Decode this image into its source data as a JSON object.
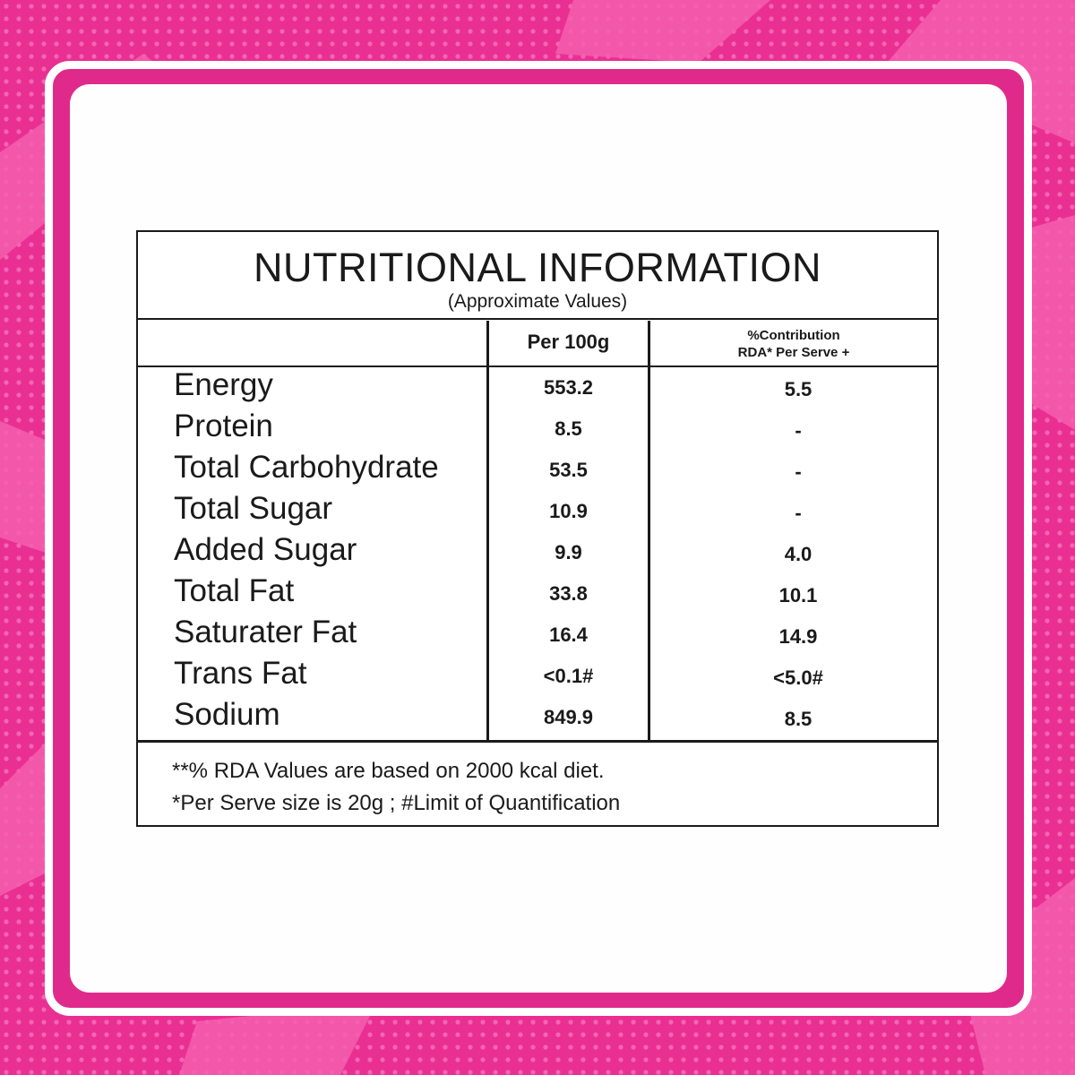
{
  "colors": {
    "background": "#ea2f93",
    "frame": "#ffffff",
    "card": "#fefefe",
    "text": "#1a1a1a"
  },
  "panel": {
    "title": "NUTRITIONAL INFORMATION",
    "subtitle": "(Approximate Values)",
    "columns": {
      "per100": "Per 100g",
      "rda_line1": "%Contribution",
      "rda_line2": "RDA* Per Serve +"
    },
    "rows": [
      {
        "name": "Energy",
        "per100": "553.2",
        "rda": "5.5"
      },
      {
        "name": "Protein",
        "per100": "8.5",
        "rda": "-"
      },
      {
        "name": "Total Carbohydrate",
        "per100": "53.5",
        "rda": "-"
      },
      {
        "name": "Total Sugar",
        "per100": "10.9",
        "rda": "-"
      },
      {
        "name": "Added Sugar",
        "per100": "9.9",
        "rda": "4.0"
      },
      {
        "name": "Total Fat",
        "per100": "33.8",
        "rda": "10.1"
      },
      {
        "name": "Saturater Fat",
        "per100": "16.4",
        "rda": "14.9"
      },
      {
        "name": "Trans Fat",
        "per100": "<0.1#",
        "rda": "<5.0#"
      },
      {
        "name": "Sodium",
        "per100": "849.9",
        "rda": "8.5"
      }
    ],
    "notes": [
      "**% RDA Values are based on 2000 kcal diet.",
      "*Per Serve size is 20g ; #Limit of Quantification"
    ]
  }
}
